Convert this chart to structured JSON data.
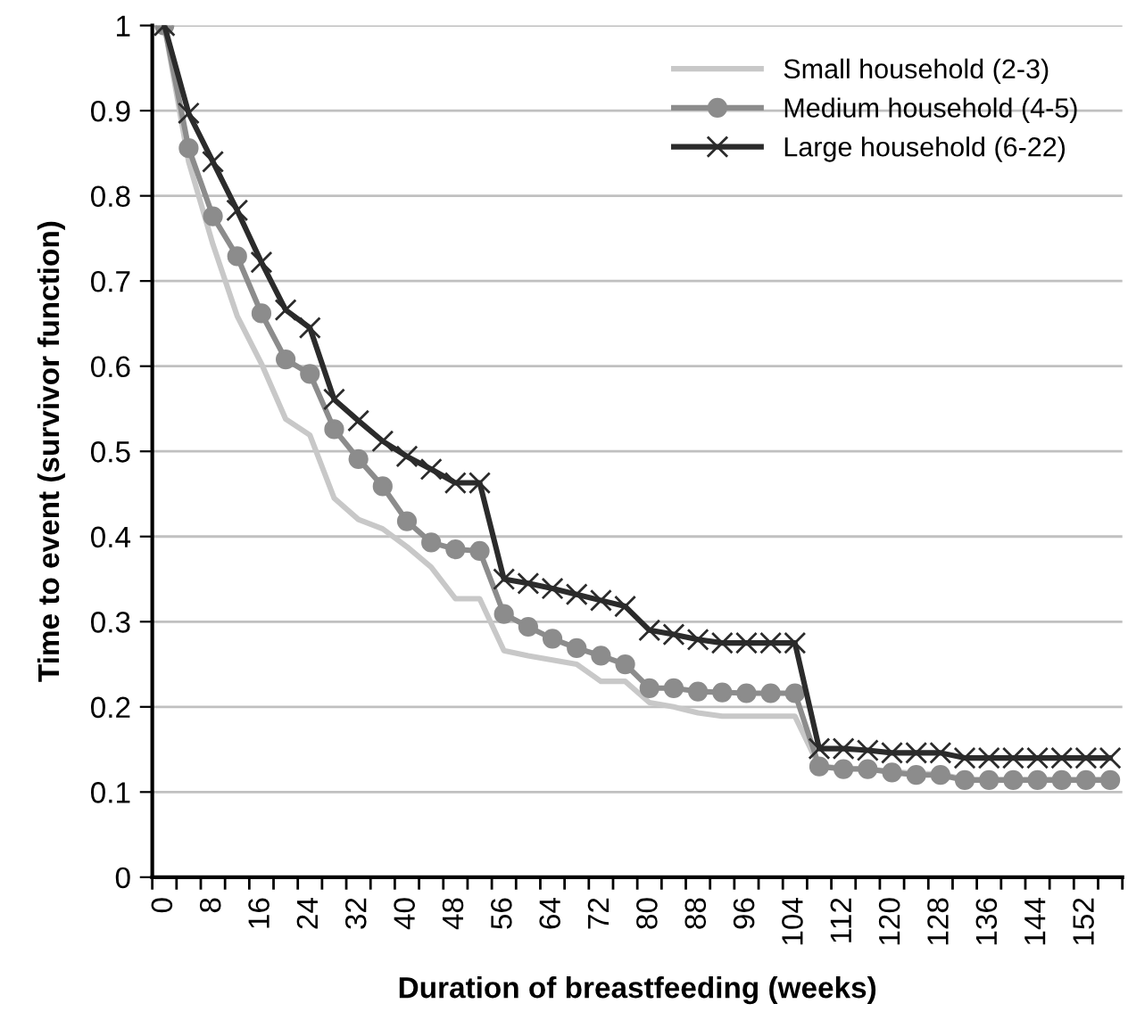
{
  "chart_data": {
    "type": "line",
    "xlabel": "Duration of breastfeeding (weeks)",
    "ylabel": "Time to event (survivor function)",
    "categories": [
      "0",
      null,
      "8",
      null,
      "16",
      null,
      "24",
      null,
      "32",
      null,
      "40",
      null,
      "48",
      null,
      "56",
      null,
      "64",
      null,
      "72",
      null,
      "80",
      null,
      "88",
      null,
      "96",
      null,
      "104",
      null,
      "112",
      null,
      "120",
      null,
      "128",
      null,
      "136",
      null,
      "144",
      null,
      "152",
      null
    ],
    "series": [
      {
        "name": "Small household (2-3)",
        "color": "#c8c8c8",
        "marker": "none",
        "values": [
          1.0,
          0.84,
          0.743,
          0.659,
          0.603,
          0.538,
          0.519,
          0.445,
          0.42,
          0.409,
          0.388,
          0.364,
          0.327,
          0.327,
          0.266,
          0.26,
          0.255,
          0.25,
          0.23,
          0.23,
          0.205,
          0.2,
          0.193,
          0.189,
          0.189,
          0.189,
          0.189,
          0.13,
          0.128,
          0.127,
          0.124,
          0.122,
          0.121,
          0.115,
          0.115,
          0.115,
          0.115,
          0.115,
          0.115,
          0.115
        ]
      },
      {
        "name": "Medium household (4-5)",
        "color": "#8c8c8c",
        "marker": "circle",
        "values": [
          1.0,
          0.856,
          0.776,
          0.729,
          0.662,
          0.608,
          0.591,
          0.526,
          0.491,
          0.459,
          0.418,
          0.393,
          0.385,
          0.383,
          0.309,
          0.294,
          0.28,
          0.269,
          0.26,
          0.25,
          0.222,
          0.222,
          0.218,
          0.217,
          0.216,
          0.216,
          0.216,
          0.13,
          0.127,
          0.127,
          0.123,
          0.12,
          0.12,
          0.114,
          0.114,
          0.114,
          0.114,
          0.114,
          0.114,
          0.114
        ]
      },
      {
        "name": "Large household (6-22)",
        "color": "#2b2b2b",
        "marker": "cross",
        "values": [
          1.0,
          0.897,
          0.84,
          0.783,
          0.722,
          0.666,
          0.645,
          0.561,
          0.536,
          0.512,
          0.494,
          0.479,
          0.463,
          0.463,
          0.35,
          0.345,
          0.339,
          0.332,
          0.325,
          0.318,
          0.29,
          0.285,
          0.279,
          0.275,
          0.275,
          0.275,
          0.275,
          0.151,
          0.151,
          0.149,
          0.146,
          0.146,
          0.146,
          0.14,
          0.14,
          0.14,
          0.14,
          0.14,
          0.14,
          0.14
        ]
      }
    ],
    "ylim": [
      0,
      1
    ],
    "yticks": [
      0,
      0.1,
      0.2,
      0.3,
      0.4,
      0.5,
      0.6,
      0.7,
      0.8,
      0.9,
      1
    ],
    "grid": "y",
    "legend": "top right",
    "line_style": "solid"
  }
}
